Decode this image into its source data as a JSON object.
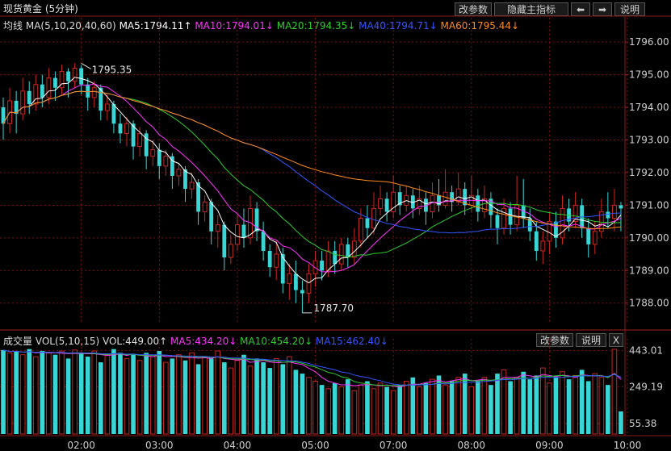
{
  "title": "现货黄金 (5分钟)",
  "toolbar": {
    "params": "改参数",
    "hide_indicator": "隐藏主指标",
    "left_arrow": "⬅",
    "right_arrow": "➡",
    "help": "说明"
  },
  "volume_toolbar": {
    "params": "改参数",
    "help": "说明",
    "close": "X"
  },
  "ma_header": {
    "label": "均线",
    "params": "MA(5,10,20,40,60)",
    "ma5": "MA5:1794.11↑",
    "ma10": "MA10:1794.01↓",
    "ma20": "MA20:1794.35↓",
    "ma40": "MA40:1794.71↓",
    "ma60": "MA60:1795.44↓"
  },
  "vol_header": {
    "label": "成交量",
    "params": "VOL(5,10,15)",
    "vol": "VOL:449.00↑",
    "ma5": "MA5:434.20↓",
    "ma10": "MA10:454.20↓",
    "ma15": "MA15:462.40↓"
  },
  "colors": {
    "up": "#c8281e",
    "down": "#3ad6d6",
    "ma5": "#ffffff",
    "ma10": "#ff33ff",
    "ma20": "#2ecc2e",
    "ma40": "#3355ff",
    "ma60": "#ff8c1a",
    "grid": "#7a1010",
    "axis_text": "#cfcfcf"
  },
  "chart_data": [
    {
      "type": "candlestick",
      "title": "现货黄金 (5分钟)",
      "ylim": [
        1787.35,
        1796.3
      ],
      "y_ticks": [
        "1796.00",
        "1795.00",
        "1794.00",
        "1793.00",
        "1792.00",
        "1791.00",
        "1790.00",
        "1789.00",
        "1788.00"
      ],
      "y_tick_values": [
        1796,
        1795,
        1794,
        1793,
        1792,
        1791,
        1790,
        1789,
        1788
      ],
      "x_ticks": [
        "02:00",
        "03:00",
        "04:00",
        "05:00",
        "07:00",
        "08:00",
        "09:00",
        "10:00"
      ],
      "x_tick_index": [
        12,
        24,
        36,
        48,
        60,
        72,
        84,
        96
      ],
      "annotations": [
        {
          "text": "1795.35",
          "index": 12,
          "value": 1795.35,
          "kind": "high"
        },
        {
          "text": "1787.70",
          "index": 46,
          "value": 1787.7,
          "kind": "low"
        }
      ],
      "candles": [
        [
          1794.0,
          1793.5,
          1794.3,
          1793.0
        ],
        [
          1793.5,
          1794.2,
          1794.6,
          1793.2
        ],
        [
          1794.2,
          1793.8,
          1794.5,
          1793.2
        ],
        [
          1793.8,
          1794.5,
          1794.9,
          1793.6
        ],
        [
          1794.5,
          1794.1,
          1794.8,
          1793.8
        ],
        [
          1794.1,
          1794.7,
          1795.0,
          1793.9
        ],
        [
          1794.7,
          1794.3,
          1795.0,
          1794.0
        ],
        [
          1794.3,
          1794.9,
          1795.2,
          1794.1
        ],
        [
          1794.9,
          1794.6,
          1795.1,
          1794.2
        ],
        [
          1794.6,
          1795.1,
          1795.3,
          1794.4
        ],
        [
          1795.1,
          1794.8,
          1795.2,
          1794.3
        ],
        [
          1794.8,
          1795.2,
          1795.35,
          1794.6
        ],
        [
          1795.2,
          1794.7,
          1795.3,
          1794.4
        ],
        [
          1794.7,
          1794.3,
          1794.9,
          1793.9
        ],
        [
          1794.3,
          1794.6,
          1794.8,
          1794.0
        ],
        [
          1794.6,
          1793.9,
          1794.7,
          1793.6
        ],
        [
          1793.9,
          1794.1,
          1794.4,
          1793.6
        ],
        [
          1794.1,
          1793.5,
          1794.2,
          1793.2
        ],
        [
          1793.5,
          1793.2,
          1793.8,
          1792.9
        ],
        [
          1793.2,
          1793.5,
          1793.7,
          1792.8
        ],
        [
          1793.5,
          1792.8,
          1793.6,
          1792.4
        ],
        [
          1792.8,
          1793.2,
          1793.4,
          1792.5
        ],
        [
          1793.2,
          1792.5,
          1793.3,
          1792.1
        ],
        [
          1792.5,
          1792.7,
          1793.0,
          1792.2
        ],
        [
          1792.7,
          1792.2,
          1792.9,
          1791.8
        ],
        [
          1792.2,
          1792.5,
          1792.7,
          1791.9
        ],
        [
          1792.5,
          1791.9,
          1792.6,
          1791.5
        ],
        [
          1791.9,
          1792.1,
          1792.3,
          1791.6
        ],
        [
          1792.1,
          1791.5,
          1792.2,
          1791.1
        ],
        [
          1791.5,
          1791.7,
          1792.0,
          1791.2
        ],
        [
          1791.7,
          1790.8,
          1791.8,
          1790.4
        ],
        [
          1790.8,
          1791.1,
          1791.3,
          1790.5
        ],
        [
          1791.1,
          1790.2,
          1791.2,
          1789.8
        ],
        [
          1790.2,
          1790.4,
          1790.7,
          1789.7
        ],
        [
          1790.4,
          1789.4,
          1790.5,
          1789.0
        ],
        [
          1789.4,
          1789.8,
          1790.1,
          1789.2
        ],
        [
          1789.8,
          1790.4,
          1790.7,
          1789.6
        ],
        [
          1790.4,
          1790.0,
          1790.9,
          1789.7
        ],
        [
          1790.0,
          1790.9,
          1791.3,
          1789.8
        ],
        [
          1790.9,
          1790.2,
          1791.1,
          1789.9
        ],
        [
          1790.2,
          1789.6,
          1790.5,
          1789.3
        ],
        [
          1789.6,
          1789.1,
          1789.8,
          1788.8
        ],
        [
          1789.1,
          1789.5,
          1789.9,
          1788.7
        ],
        [
          1789.5,
          1788.6,
          1789.7,
          1788.3
        ],
        [
          1788.6,
          1788.9,
          1789.2,
          1788.1
        ],
        [
          1788.9,
          1788.4,
          1789.3,
          1788.0
        ],
        [
          1788.4,
          1788.3,
          1788.7,
          1787.7
        ],
        [
          1788.3,
          1788.9,
          1789.2,
          1788.0
        ],
        [
          1788.9,
          1789.3,
          1789.6,
          1788.5
        ],
        [
          1789.3,
          1789.0,
          1789.6,
          1788.7
        ],
        [
          1789.0,
          1789.6,
          1789.9,
          1788.8
        ],
        [
          1789.6,
          1789.2,
          1789.9,
          1788.9
        ],
        [
          1789.2,
          1789.8,
          1790.0,
          1789.0
        ],
        [
          1789.8,
          1789.4,
          1790.0,
          1789.1
        ],
        [
          1789.4,
          1789.9,
          1790.3,
          1789.2
        ],
        [
          1789.9,
          1790.6,
          1790.9,
          1789.7
        ],
        [
          1790.6,
          1790.3,
          1791.0,
          1790.0
        ],
        [
          1790.3,
          1790.9,
          1791.4,
          1790.1
        ],
        [
          1790.9,
          1791.2,
          1791.6,
          1790.7
        ],
        [
          1791.2,
          1790.8,
          1791.4,
          1790.5
        ],
        [
          1790.8,
          1791.4,
          1791.9,
          1790.6
        ],
        [
          1791.4,
          1791.0,
          1791.6,
          1790.7
        ],
        [
          1791.0,
          1791.3,
          1791.6,
          1790.8
        ],
        [
          1791.3,
          1790.9,
          1791.5,
          1790.6
        ],
        [
          1790.9,
          1791.2,
          1791.6,
          1790.7
        ],
        [
          1791.2,
          1790.8,
          1791.4,
          1790.4
        ],
        [
          1790.8,
          1791.3,
          1791.7,
          1790.6
        ],
        [
          1791.3,
          1791.0,
          1791.8,
          1790.8
        ],
        [
          1791.0,
          1791.4,
          1792.1,
          1790.9
        ],
        [
          1791.4,
          1791.1,
          1791.6,
          1790.8
        ],
        [
          1791.1,
          1791.5,
          1792.0,
          1791.0
        ],
        [
          1791.5,
          1791.0,
          1791.7,
          1790.7
        ],
        [
          1791.0,
          1791.3,
          1791.9,
          1790.8
        ],
        [
          1791.3,
          1790.8,
          1791.5,
          1790.5
        ],
        [
          1790.8,
          1791.2,
          1791.6,
          1790.6
        ],
        [
          1791.2,
          1790.7,
          1791.4,
          1790.3
        ],
        [
          1790.7,
          1790.3,
          1790.9,
          1789.8
        ],
        [
          1790.3,
          1790.9,
          1791.2,
          1790.1
        ],
        [
          1790.9,
          1790.4,
          1791.1,
          1790.1
        ],
        [
          1790.4,
          1791.0,
          1791.9,
          1790.2
        ],
        [
          1791.0,
          1790.6,
          1791.8,
          1790.3
        ],
        [
          1790.6,
          1790.2,
          1790.9,
          1789.9
        ],
        [
          1790.2,
          1789.6,
          1790.5,
          1789.3
        ],
        [
          1789.6,
          1789.9,
          1790.2,
          1789.2
        ],
        [
          1789.9,
          1790.5,
          1790.8,
          1789.5
        ],
        [
          1790.5,
          1790.0,
          1790.8,
          1789.7
        ],
        [
          1790.0,
          1790.9,
          1791.3,
          1789.8
        ],
        [
          1790.9,
          1790.5,
          1791.2,
          1790.2
        ],
        [
          1790.5,
          1791.0,
          1791.4,
          1790.3
        ],
        [
          1791.0,
          1790.3,
          1791.2,
          1790.0
        ],
        [
          1790.3,
          1789.8,
          1790.6,
          1789.4
        ],
        [
          1789.8,
          1790.2,
          1790.5,
          1789.5
        ],
        [
          1790.2,
          1790.8,
          1791.2,
          1790.0
        ],
        [
          1790.8,
          1790.6,
          1791.4,
          1790.3
        ],
        [
          1790.6,
          1791.0,
          1791.5,
          1790.2
        ],
        [
          1791.0,
          1790.9,
          1791.1,
          1790.2
        ]
      ]
    },
    {
      "type": "bar",
      "title": "成交量",
      "ylim": [
        0,
        470
      ],
      "y_ticks": [
        "443.01",
        "249.19",
        "55.38"
      ],
      "y_tick_values": [
        443.01,
        249.19,
        55.38
      ],
      "volumes": [
        445,
        430,
        440,
        420,
        450,
        410,
        440,
        430,
        420,
        440,
        400,
        445,
        430,
        410,
        440,
        380,
        420,
        450,
        430,
        400,
        420,
        390,
        430,
        410,
        440,
        380,
        400,
        420,
        390,
        430,
        370,
        410,
        400,
        440,
        380,
        350,
        390,
        420,
        360,
        400,
        380,
        350,
        400,
        370,
        410,
        340,
        320,
        300,
        280,
        260,
        240,
        270,
        250,
        290,
        230,
        260,
        280,
        240,
        270,
        250,
        230,
        260,
        280,
        300,
        250,
        270,
        290,
        310,
        260,
        280,
        300,
        320,
        250,
        280,
        300,
        260,
        320,
        340,
        280,
        300,
        330,
        290,
        310,
        350,
        270,
        300,
        330,
        290,
        310,
        340,
        280,
        320,
        300,
        260,
        449,
        120
      ],
      "series": [
        {
          "name": "MA5",
          "values": []
        },
        {
          "name": "MA10",
          "values": []
        },
        {
          "name": "MA15",
          "values": []
        }
      ]
    }
  ]
}
